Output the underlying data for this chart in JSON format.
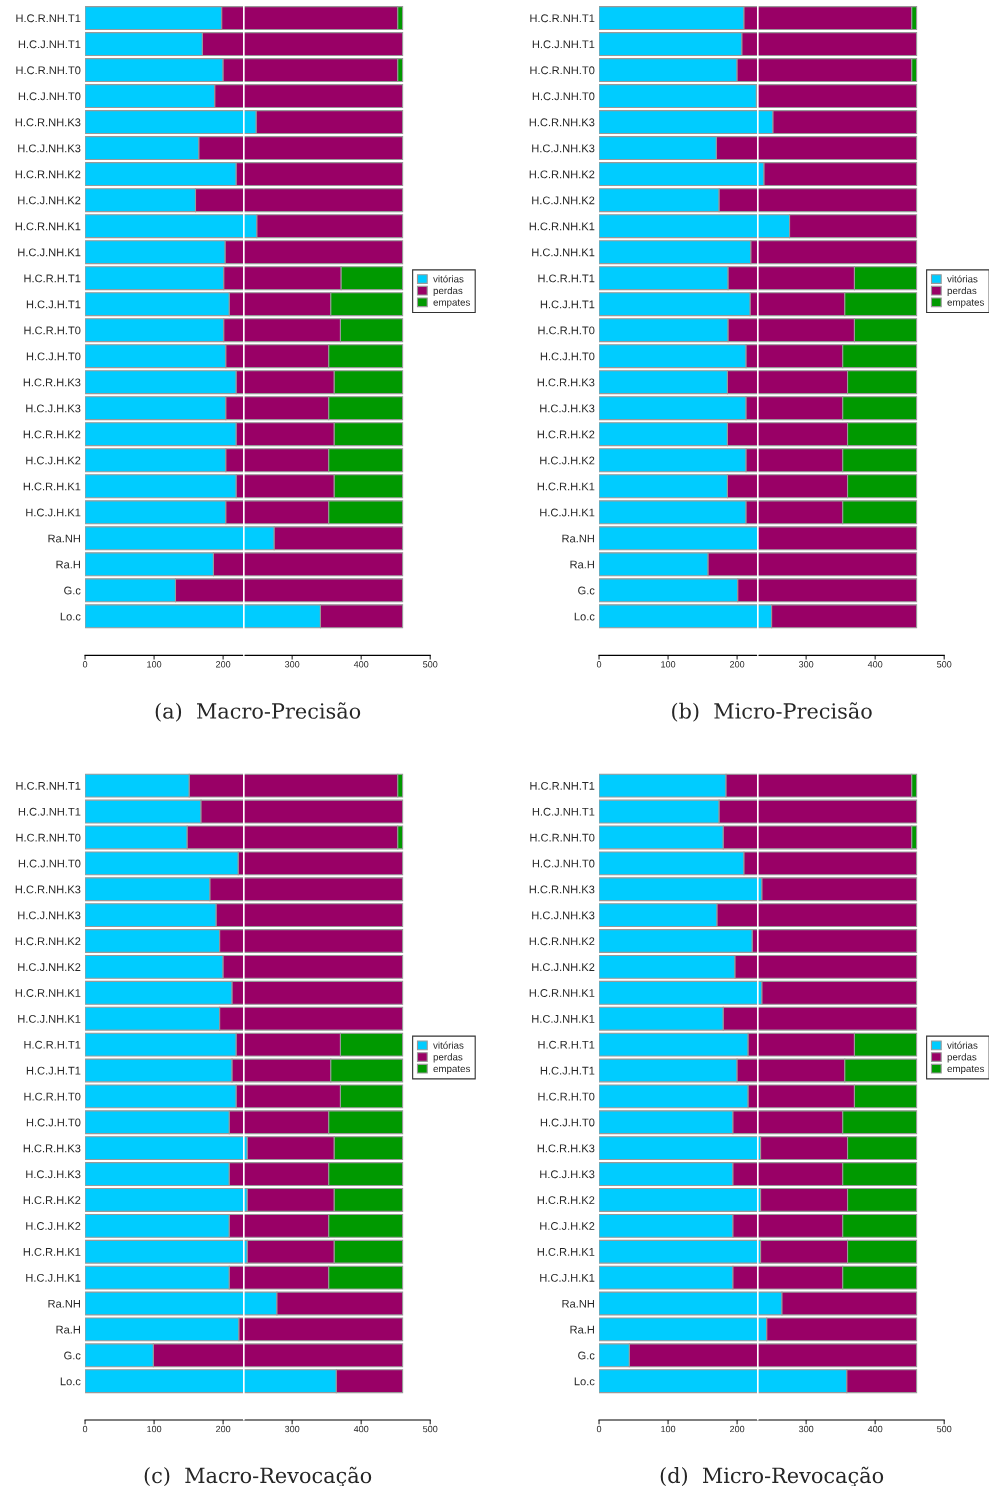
{
  "chart_data": [
    {
      "type": "bar",
      "orientation": "horizontal",
      "stacked": true,
      "title": "(a)  Macro-Precisão",
      "categories": [
        "H.C.R.NH.T1",
        "H.C.J.NH.T1",
        "H.C.R.NH.T0",
        "H.C.J.NH.T0",
        "H.C.R.NH.K3",
        "H.C.J.NH.K3",
        "H.C.R.NH.K2",
        "H.C.J.NH.K2",
        "H.C.R.NH.K1",
        "H.C.J.NH.K1",
        "H.C.R.H.T1",
        "H.C.J.H.T1",
        "H.C.R.H.T0",
        "H.C.J.H.T0",
        "H.C.R.H.K3",
        "H.C.J.H.K3",
        "H.C.R.H.K2",
        "H.C.J.H.K2",
        "H.C.R.H.K1",
        "H.C.J.H.K1",
        "Ra.NH",
        "Ra.H",
        "G.c",
        "Lo.c"
      ],
      "series": [
        {
          "name": "vitórias",
          "color": "#00ccff",
          "values": [
            198,
            170,
            200,
            188,
            248,
            165,
            219,
            160,
            249,
            203,
            201,
            209,
            201,
            204,
            219,
            204,
            219,
            204,
            219,
            204,
            274,
            186,
            131,
            341
          ]
        },
        {
          "name": "perdas",
          "color": "#990066",
          "values": [
            255,
            290,
            253,
            272,
            212,
            295,
            241,
            300,
            211,
            257,
            170,
            147,
            169,
            149,
            142,
            149,
            142,
            149,
            142,
            149,
            186,
            274,
            329,
            119
          ]
        },
        {
          "name": "empates",
          "color": "#009900",
          "values": [
            7,
            null,
            7,
            null,
            null,
            null,
            null,
            null,
            null,
            null,
            89,
            104,
            90,
            107,
            99,
            107,
            99,
            107,
            99,
            107,
            null,
            null,
            null,
            null
          ]
        }
      ],
      "xlim": [
        0,
        500
      ],
      "xticks": [
        0,
        100,
        200,
        300,
        400,
        500
      ],
      "grid": false,
      "legend": "right",
      "ref_lines": [
        {
          "axis": "x",
          "value": 230,
          "color": "#ffffff"
        }
      ]
    },
    {
      "type": "bar",
      "orientation": "horizontal",
      "stacked": true,
      "title": "(b)  Micro-Precisão",
      "categories": [
        "H.C.R.NH.T1",
        "H.C.J.NH.T1",
        "H.C.R.NH.T0",
        "H.C.J.NH.T0",
        "H.C.R.NH.K3",
        "H.C.J.NH.K3",
        "H.C.R.NH.K2",
        "H.C.J.NH.K2",
        "H.C.R.NH.K1",
        "H.C.J.NH.K1",
        "H.C.R.H.T1",
        "H.C.J.H.T1",
        "H.C.R.H.T0",
        "H.C.J.H.T0",
        "H.C.R.H.K3",
        "H.C.J.H.K3",
        "H.C.R.H.K2",
        "H.C.J.H.K2",
        "H.C.R.H.K1",
        "H.C.J.H.K1",
        "Ra.NH",
        "Ra.H",
        "G.c",
        "Lo.c"
      ],
      "series": [
        {
          "name": "vitórias",
          "color": "#00ccff",
          "values": [
            210,
            207,
            200,
            228,
            252,
            170,
            239,
            174,
            276,
            220,
            187,
            219,
            187,
            213,
            186,
            213,
            186,
            213,
            186,
            213,
            230,
            158,
            201,
            250
          ]
        },
        {
          "name": "perdas",
          "color": "#990066",
          "values": [
            243,
            253,
            253,
            232,
            208,
            290,
            221,
            286,
            184,
            240,
            183,
            137,
            183,
            140,
            174,
            140,
            174,
            140,
            174,
            140,
            230,
            302,
            259,
            210
          ]
        },
        {
          "name": "empates",
          "color": "#009900",
          "values": [
            7,
            null,
            7,
            null,
            null,
            null,
            null,
            null,
            null,
            null,
            90,
            104,
            90,
            107,
            100,
            107,
            100,
            107,
            100,
            107,
            null,
            null,
            null,
            null
          ]
        }
      ],
      "xlim": [
        0,
        500
      ],
      "xticks": [
        0,
        100,
        200,
        300,
        400,
        500
      ],
      "grid": false,
      "legend": "right",
      "ref_lines": [
        {
          "axis": "x",
          "value": 230,
          "color": "#ffffff"
        }
      ]
    },
    {
      "type": "bar",
      "orientation": "horizontal",
      "stacked": true,
      "title": "(c)  Macro-Revocação",
      "categories": [
        "H.C.R.NH.T1",
        "H.C.J.NH.T1",
        "H.C.R.NH.T0",
        "H.C.J.NH.T0",
        "H.C.R.NH.K3",
        "H.C.J.NH.K3",
        "H.C.R.NH.K2",
        "H.C.J.NH.K2",
        "H.C.R.NH.K1",
        "H.C.J.NH.K1",
        "H.C.R.H.T1",
        "H.C.J.H.T1",
        "H.C.R.H.T0",
        "H.C.J.H.T0",
        "H.C.R.H.K3",
        "H.C.J.H.K3",
        "H.C.R.H.K2",
        "H.C.J.H.K2",
        "H.C.R.H.K1",
        "H.C.J.H.K1",
        "Ra.NH",
        "Ra.H",
        "G.c",
        "Lo.c"
      ],
      "series": [
        {
          "name": "vitórias",
          "color": "#00ccff",
          "values": [
            151,
            168,
            148,
            222,
            181,
            190,
            195,
            200,
            213,
            195,
            219,
            213,
            219,
            209,
            235,
            209,
            235,
            209,
            235,
            209,
            278,
            223,
            99,
            364
          ]
        },
        {
          "name": "perdas",
          "color": "#990066",
          "values": [
            302,
            292,
            305,
            238,
            279,
            270,
            265,
            260,
            247,
            265,
            151,
            143,
            151,
            144,
            126,
            144,
            126,
            144,
            126,
            144,
            182,
            237,
            361,
            96
          ]
        },
        {
          "name": "empates",
          "color": "#009900",
          "values": [
            7,
            null,
            7,
            null,
            null,
            null,
            null,
            null,
            null,
            null,
            90,
            104,
            90,
            107,
            99,
            107,
            99,
            107,
            99,
            107,
            null,
            null,
            null,
            null
          ]
        }
      ],
      "xlim": [
        0,
        500
      ],
      "xticks": [
        0,
        100,
        200,
        300,
        400,
        500
      ],
      "grid": false,
      "legend": "right",
      "ref_lines": [
        {
          "axis": "x",
          "value": 230,
          "color": "#ffffff"
        }
      ]
    },
    {
      "type": "bar",
      "orientation": "horizontal",
      "stacked": true,
      "title": "(d)  Micro-Revocação",
      "categories": [
        "H.C.R.NH.T1",
        "H.C.J.NH.T1",
        "H.C.R.NH.T0",
        "H.C.J.NH.T0",
        "H.C.R.NH.K3",
        "H.C.J.NH.K3",
        "H.C.R.NH.K2",
        "H.C.J.NH.K2",
        "H.C.R.NH.K1",
        "H.C.J.NH.K1",
        "H.C.R.H.T1",
        "H.C.J.H.T1",
        "H.C.R.H.T0",
        "H.C.J.H.T0",
        "H.C.R.H.K3",
        "H.C.J.H.K3",
        "H.C.R.H.K2",
        "H.C.J.H.K2",
        "H.C.R.H.K1",
        "H.C.J.H.K1",
        "Ra.NH",
        "Ra.H",
        "G.c",
        "Lo.c"
      ],
      "series": [
        {
          "name": "vitórias",
          "color": "#00ccff",
          "values": [
            184,
            174,
            180,
            210,
            236,
            171,
            222,
            197,
            236,
            180,
            216,
            200,
            216,
            194,
            234,
            194,
            234,
            194,
            234,
            194,
            265,
            243,
            44,
            359
          ]
        },
        {
          "name": "perdas",
          "color": "#990066",
          "values": [
            269,
            286,
            273,
            250,
            224,
            289,
            238,
            263,
            224,
            280,
            154,
            156,
            154,
            159,
            126,
            159,
            126,
            159,
            126,
            159,
            195,
            217,
            416,
            101
          ]
        },
        {
          "name": "empates",
          "color": "#009900",
          "values": [
            7,
            null,
            7,
            null,
            null,
            null,
            null,
            null,
            null,
            null,
            90,
            104,
            90,
            107,
            100,
            107,
            100,
            107,
            100,
            107,
            null,
            null,
            null,
            null
          ]
        }
      ],
      "xlim": [
        0,
        500
      ],
      "xticks": [
        0,
        100,
        200,
        300,
        400,
        500
      ],
      "grid": false,
      "legend": "right",
      "ref_lines": [
        {
          "axis": "x",
          "value": 230,
          "color": "#ffffff"
        }
      ]
    }
  ]
}
